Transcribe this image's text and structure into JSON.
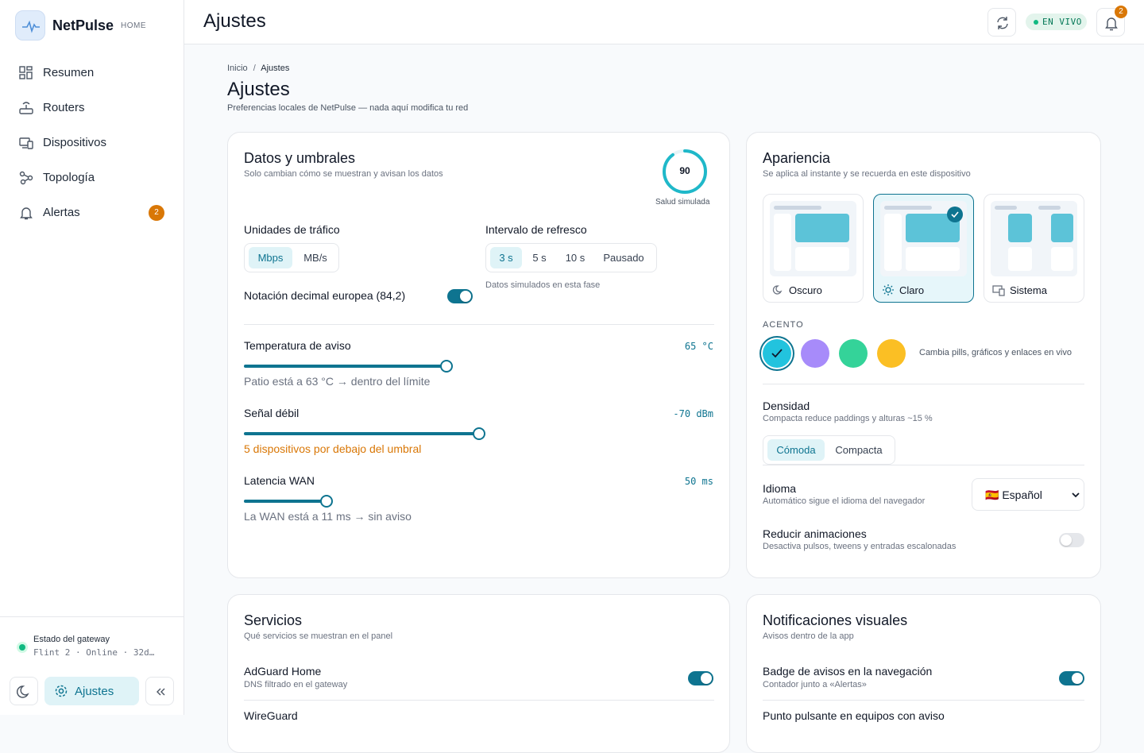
{
  "sidebar": {
    "brand": "NetPulse",
    "tag": "HOME",
    "nav": [
      {
        "label": "Resumen"
      },
      {
        "label": "Routers"
      },
      {
        "label": "Dispositivos"
      },
      {
        "label": "Topología"
      },
      {
        "label": "Alertas",
        "badge": 2
      }
    ],
    "gateway": {
      "title": "Estado del gateway",
      "status": "Flint 2 · Online · 32d…"
    },
    "settings": "Ajustes"
  },
  "topbar": {
    "title": "Ajustes",
    "live": "EN VIVO",
    "notifications": 2
  },
  "page": {
    "breadcrumb": [
      "Inicio",
      "Ajustes"
    ],
    "separator": "/",
    "title": "Ajustes",
    "subtitle": "Preferencias locales de NetPulse — nada aquí modifica tu red"
  },
  "data_card": {
    "title": "Datos y umbrales",
    "subtitle": "Solo cambian cómo se muestran y avisan los datos",
    "health": {
      "value": 90,
      "label": "Salud simulada"
    },
    "units": {
      "label": "Unidades de tráfico",
      "options": [
        "Mbps",
        "MB/s"
      ],
      "selected": 0
    },
    "refresh": {
      "label": "Intervalo de refresco",
      "options": [
        "3 s",
        "5 s",
        "10 s",
        "Pausado"
      ],
      "selected": 0,
      "note": "Datos simulados en esta fase"
    },
    "decimal": {
      "label": "Notación decimal europea (84,2)",
      "on": true
    },
    "thresholds": [
      {
        "label": "Temperatura de aviso",
        "value": "65 °C",
        "note": "Patio está a 63 °C → dentro del límite",
        "warning": false
      },
      {
        "label": "Señal débil",
        "value": "-70 dBm",
        "note": "5 dispositivos por debajo del umbral",
        "warning": true
      },
      {
        "label": "Latencia WAN",
        "value": "50 ms",
        "note": "La WAN está a 11 ms → sin aviso",
        "warning": false
      }
    ]
  },
  "appearance": {
    "title": "Apariencia",
    "subtitle": "Se aplica al instante y se recuerda en este dispositivo",
    "themes": [
      "Oscuro",
      "Claro",
      "Sistema"
    ],
    "selected": 1,
    "accent": {
      "label": "ACENTO",
      "colors": [
        "#22c3de",
        "#a78bfa",
        "#34d399",
        "#fbbf24"
      ],
      "selected": 0,
      "note": "Cambia pills, gráficos y enlaces en vivo"
    },
    "density": {
      "label": "Densidad",
      "subtitle": "Compacta reduce paddings y alturas ~15 %",
      "options": [
        "Cómoda",
        "Compacta"
      ],
      "selected": 0
    },
    "language": {
      "label": "Idioma",
      "subtitle": "Automático sigue el idioma del navegador",
      "value": "🇪🇸 Español"
    },
    "reduce_motion": {
      "label": "Reducir animaciones",
      "subtitle": "Desactiva pulsos, tweens y entradas escalonadas",
      "on": false
    }
  },
  "services": {
    "title": "Servicios",
    "subtitle": "Qué servicios se muestran en el panel",
    "items": [
      {
        "label": "AdGuard Home",
        "subtitle": "DNS filtrado en el gateway",
        "on": true
      },
      {
        "label": "WireGuard"
      }
    ]
  },
  "notifications": {
    "title": "Notificaciones visuales",
    "subtitle": "Avisos dentro de la app",
    "items": [
      {
        "label": "Badge de avisos en la navegación",
        "subtitle": "Contador junto a «Alertas»",
        "on": true
      },
      {
        "label": "Punto pulsante en equipos con aviso"
      }
    ]
  }
}
